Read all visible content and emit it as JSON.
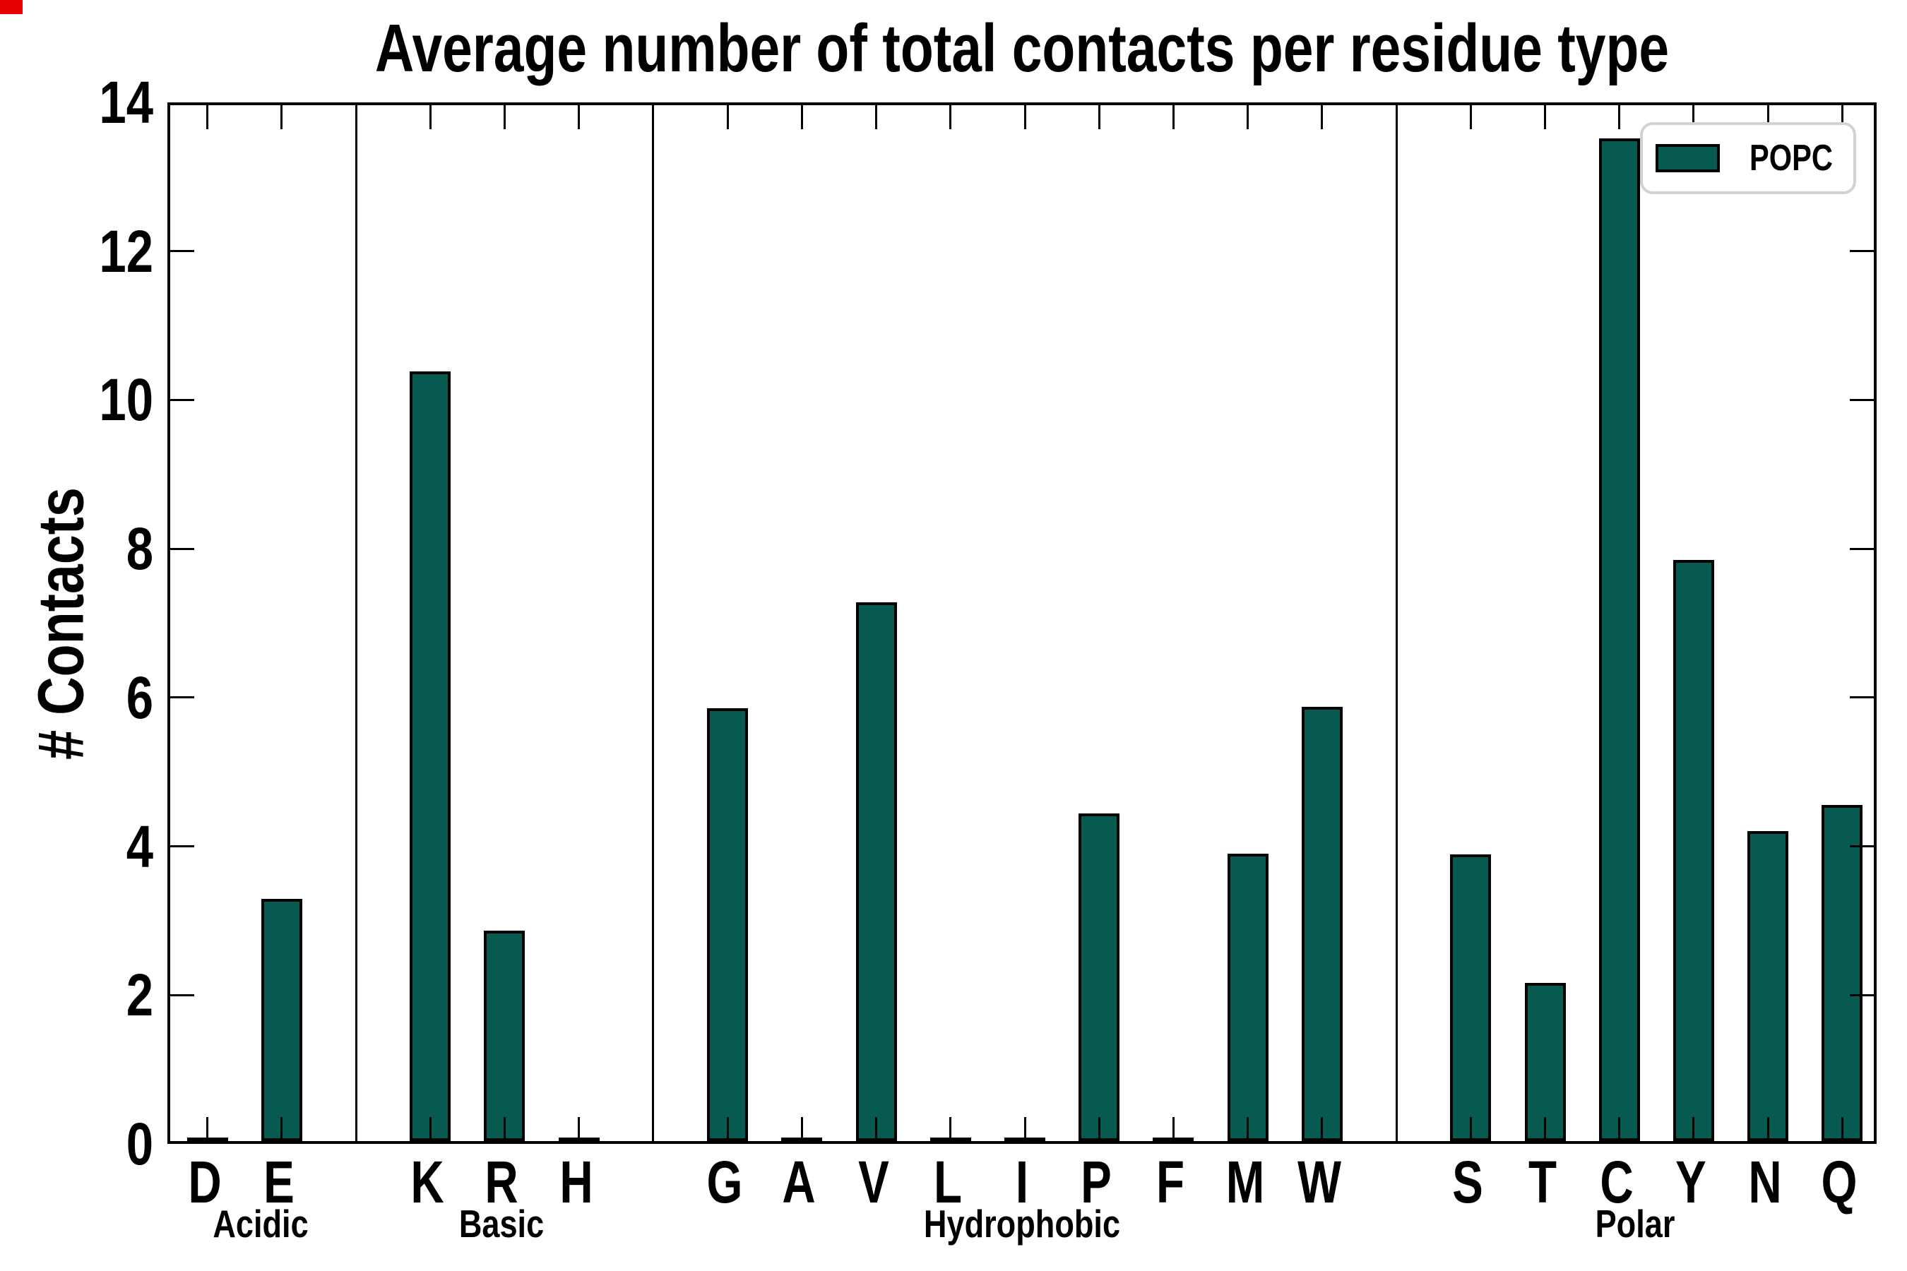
{
  "title": "Average number of total contacts per residue type",
  "ylabel": "# Contacts",
  "legend": {
    "label": "POPC"
  },
  "colors": {
    "bar_fill": "#065a4f",
    "bar_edge": "#000000",
    "legend_border": "#d2d2d2",
    "axis": "#000000",
    "corner_artifact": "#e60000"
  },
  "chart_data": {
    "type": "bar",
    "title": "Average number of total contacts per residue type",
    "xlabel": "",
    "ylabel": "# Contacts",
    "ylim": [
      0,
      14
    ],
    "yticks": [
      0,
      2,
      4,
      6,
      8,
      10,
      12,
      14
    ],
    "grid": false,
    "legend_position": "upper right",
    "series_name": "POPC",
    "groups": [
      {
        "name": "Acidic",
        "categories": [
          "D",
          "E"
        ],
        "values": [
          0.03,
          3.26
        ]
      },
      {
        "name": "Basic",
        "categories": [
          "K",
          "R",
          "H"
        ],
        "values": [
          10.35,
          2.83,
          0.03
        ]
      },
      {
        "name": "Hydrophobic",
        "categories": [
          "G",
          "A",
          "V",
          "L",
          "I",
          "P",
          "F",
          "M",
          "W"
        ],
        "values": [
          5.82,
          0.03,
          7.24,
          0.03,
          0.04,
          4.4,
          0.03,
          3.86,
          5.84
        ]
      },
      {
        "name": "Polar",
        "categories": [
          "S",
          "T",
          "C",
          "Y",
          "N",
          "Q"
        ],
        "values": [
          3.85,
          2.13,
          13.48,
          7.81,
          4.17,
          4.52
        ]
      }
    ]
  }
}
